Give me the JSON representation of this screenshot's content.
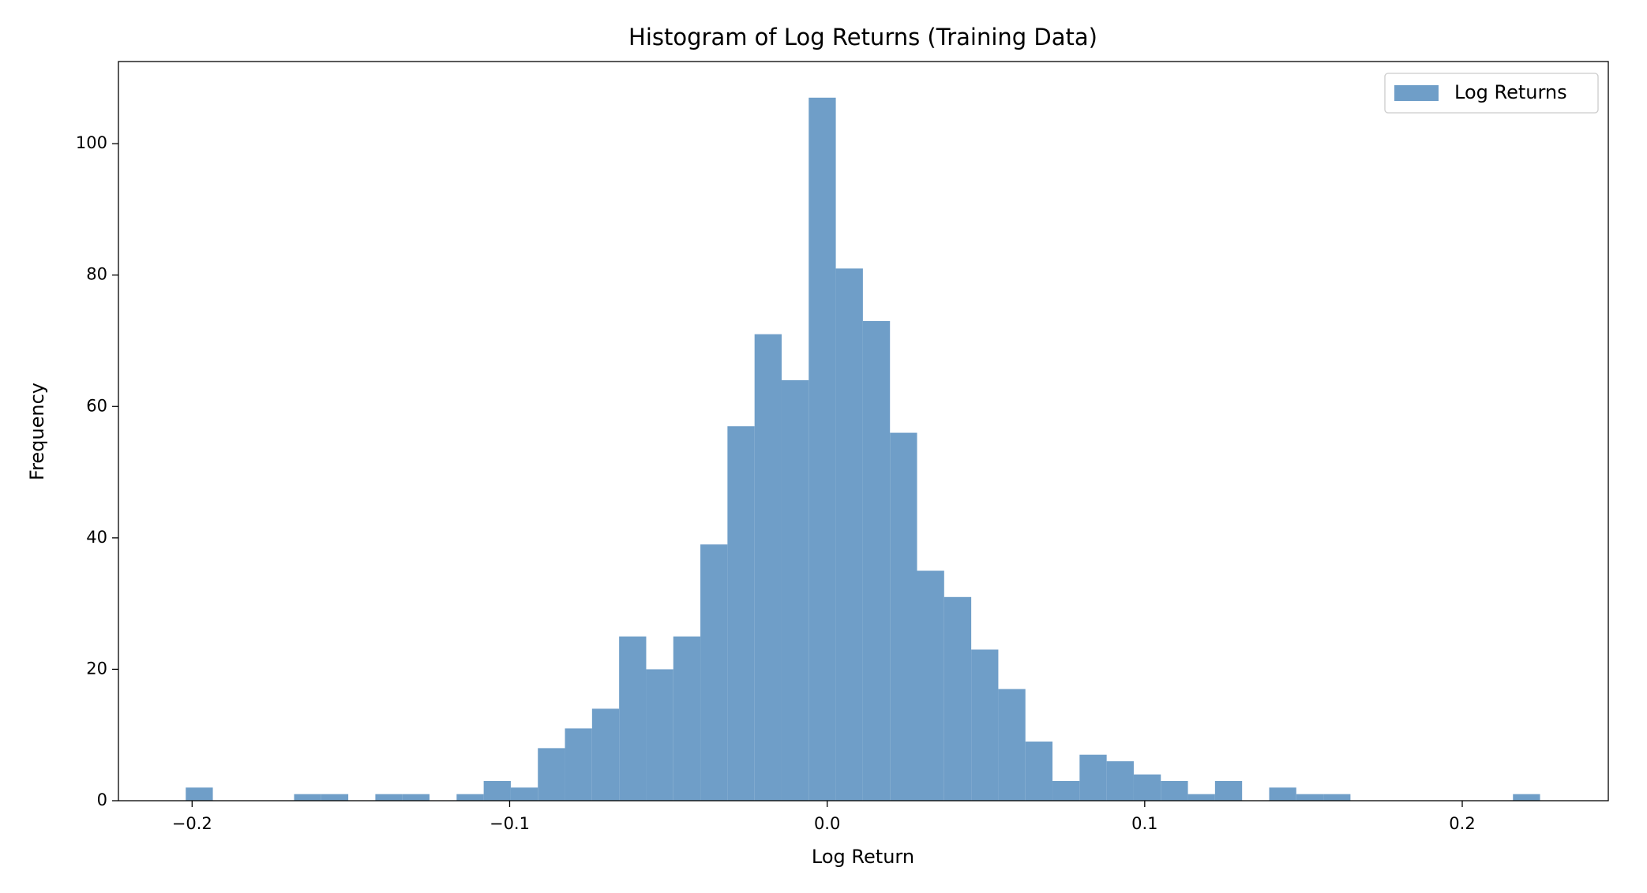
{
  "chart_data": {
    "type": "histogram",
    "title": "Histogram of Log Returns (Training Data)",
    "x_label": "Log Return",
    "y_label": "Frequency",
    "bins": [
      -0.202,
      -0.19347,
      -0.18494,
      -0.17641,
      -0.16788,
      -0.15935,
      -0.15082,
      -0.14229,
      -0.13376,
      -0.12523,
      -0.1167,
      -0.10817,
      -0.09964,
      -0.09111,
      -0.08258,
      -0.07405,
      -0.06552,
      -0.05699,
      -0.04846,
      -0.03993,
      -0.0314,
      -0.02287,
      -0.01434,
      -0.00581,
      0.00272,
      0.01125,
      0.01978,
      0.02831,
      0.03684,
      0.04537,
      0.0539,
      0.06243,
      0.07096,
      0.07949,
      0.08802,
      0.09655,
      0.10508,
      0.11361,
      0.12214,
      0.13067,
      0.1392,
      0.14773,
      0.15626,
      0.16479,
      0.17332,
      0.18185,
      0.19038,
      0.19891,
      0.20744,
      0.21597,
      0.2245
    ],
    "series": [
      {
        "name": "Log Returns",
        "color": "#6f9ec8",
        "values": [
          2,
          0,
          0,
          0,
          1,
          1,
          0,
          1,
          1,
          0,
          1,
          3,
          2,
          8,
          11,
          14,
          25,
          20,
          25,
          39,
          57,
          71,
          64,
          107,
          81,
          73,
          56,
          35,
          31,
          23,
          17,
          9,
          3,
          7,
          6,
          4,
          3,
          1,
          3,
          0,
          2,
          1,
          1,
          0,
          0,
          0,
          0,
          0,
          0,
          1
        ]
      }
    ],
    "xlim": [
      -0.2232,
      0.246
    ],
    "ylim": [
      0,
      112.5
    ],
    "xticks": [
      {
        "value": -0.2,
        "label": "−0.2"
      },
      {
        "value": -0.1,
        "label": "−0.1"
      },
      {
        "value": 0,
        "label": "0.0"
      },
      0.1,
      0.2
    ],
    "yticks": [
      0,
      20,
      40,
      60,
      80,
      100
    ],
    "legend": "upper right"
  }
}
